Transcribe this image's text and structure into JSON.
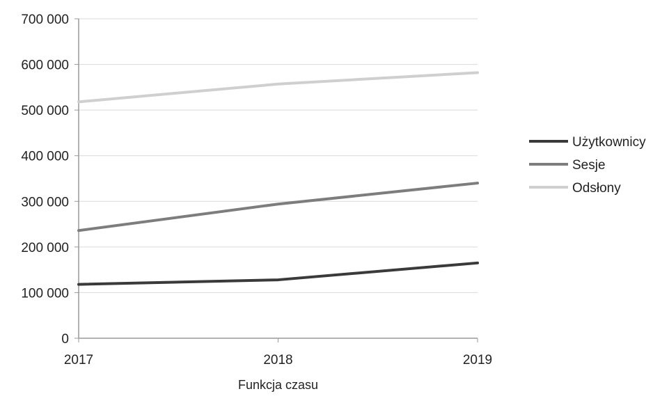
{
  "chart_data": {
    "type": "line",
    "x": [
      "2017",
      "2018",
      "2019"
    ],
    "series": [
      {
        "name": "Użytkownicy",
        "values": [
          118000,
          128000,
          165000
        ],
        "color": "#3a3a3a"
      },
      {
        "name": "Sesje",
        "values": [
          236000,
          294000,
          340000
        ],
        "color": "#7d7d7d"
      },
      {
        "name": "Odsłony",
        "values": [
          518000,
          557000,
          582000
        ],
        "color": "#cfcfcf"
      }
    ],
    "yticks": [
      0,
      100000,
      200000,
      300000,
      400000,
      500000,
      600000,
      700000
    ],
    "ytick_labels": [
      "0",
      "100 000",
      "200 000",
      "300 000",
      "400 000",
      "500 000",
      "600 000",
      "700 000"
    ],
    "title": "",
    "xlabel": "Funkcja czasu",
    "ylabel": "",
    "ylim": [
      0,
      700000
    ],
    "grid": true,
    "legend_position": "right"
  }
}
